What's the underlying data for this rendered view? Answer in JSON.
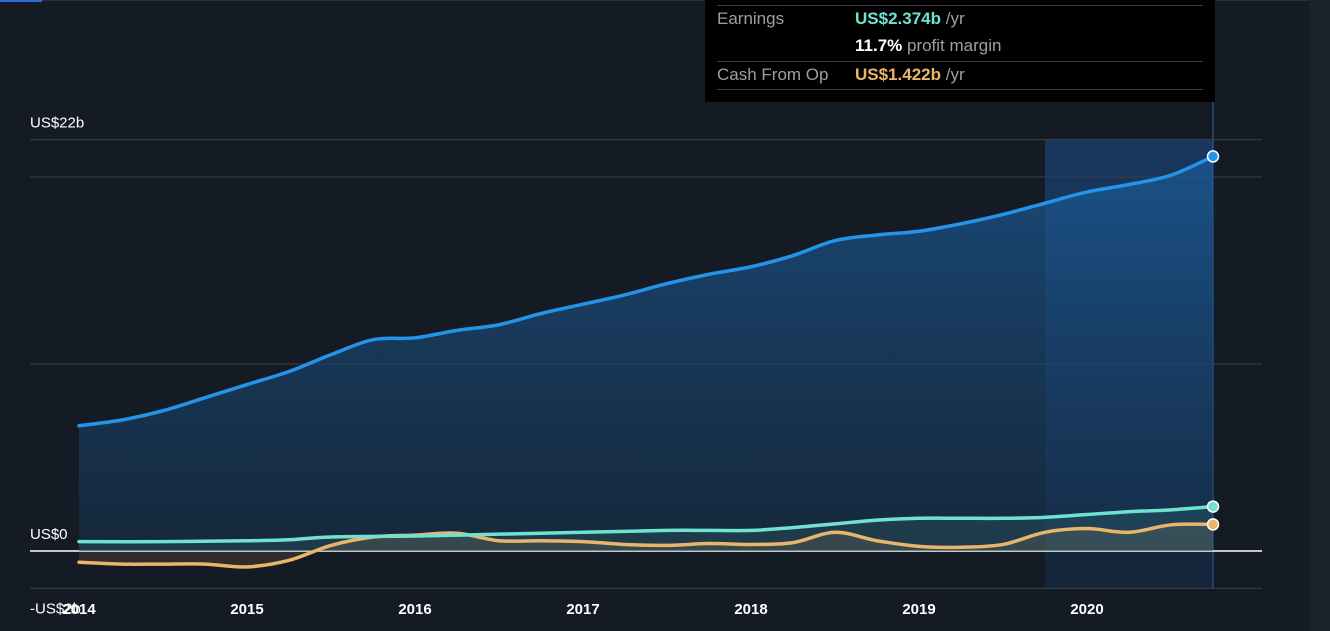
{
  "colors": {
    "revenue": "#2394e8",
    "earnings": "#6fe3cf",
    "cash_from_op": "#e8b56a",
    "background": "#151b24",
    "tooltip_bg": "#000000"
  },
  "tooltip": {
    "earnings": {
      "label": "Earnings",
      "value": "US$2.374b",
      "unit": " /yr"
    },
    "margin": {
      "value": "11.7%",
      "label": " profit margin"
    },
    "cash_from_op": {
      "label": "Cash From Op",
      "value": "US$1.422b",
      "unit": " /yr"
    }
  },
  "chart_data": {
    "type": "area",
    "title": "",
    "xlabel": "",
    "ylabel": "",
    "x_ticks": [
      "2014",
      "2015",
      "2016",
      "2017",
      "2018",
      "2019",
      "2020"
    ],
    "x_range": [
      2014,
      2020.8
    ],
    "y_range": [
      -2,
      22
    ],
    "y_tick_labels": [
      {
        "value": 22,
        "label": "US$22b"
      },
      {
        "value": 0,
        "label": "US$0"
      },
      {
        "value": -2,
        "label": "-US$2b"
      }
    ],
    "gridlines": [
      22,
      20,
      10,
      -2
    ],
    "zero_line": 0,
    "highlight_range": [
      2019.75,
      2020.75
    ],
    "series": [
      {
        "key": "revenue",
        "points": [
          [
            2014.0,
            6.7
          ],
          [
            2014.25,
            7.0
          ],
          [
            2014.5,
            7.5
          ],
          [
            2014.75,
            8.2
          ],
          [
            2015.0,
            8.9
          ],
          [
            2015.25,
            9.6
          ],
          [
            2015.5,
            10.5
          ],
          [
            2015.75,
            11.3
          ],
          [
            2016.0,
            11.4
          ],
          [
            2016.25,
            11.8
          ],
          [
            2016.5,
            12.1
          ],
          [
            2016.75,
            12.7
          ],
          [
            2017.0,
            13.2
          ],
          [
            2017.25,
            13.7
          ],
          [
            2017.5,
            14.3
          ],
          [
            2017.75,
            14.8
          ],
          [
            2018.0,
            15.2
          ],
          [
            2018.25,
            15.8
          ],
          [
            2018.5,
            16.6
          ],
          [
            2018.75,
            16.9
          ],
          [
            2019.0,
            17.1
          ],
          [
            2019.25,
            17.5
          ],
          [
            2019.5,
            18.0
          ],
          [
            2019.75,
            18.6
          ],
          [
            2020.0,
            19.2
          ],
          [
            2020.25,
            19.6
          ],
          [
            2020.5,
            20.1
          ],
          [
            2020.75,
            21.1
          ]
        ]
      },
      {
        "key": "earnings",
        "points": [
          [
            2014.0,
            0.5
          ],
          [
            2014.5,
            0.5
          ],
          [
            2015.0,
            0.55
          ],
          [
            2015.25,
            0.6
          ],
          [
            2015.5,
            0.75
          ],
          [
            2016.0,
            0.8
          ],
          [
            2016.5,
            0.9
          ],
          [
            2017.0,
            1.0
          ],
          [
            2017.5,
            1.1
          ],
          [
            2017.75,
            1.1
          ],
          [
            2018.0,
            1.1
          ],
          [
            2018.25,
            1.25
          ],
          [
            2018.5,
            1.45
          ],
          [
            2018.75,
            1.65
          ],
          [
            2019.0,
            1.75
          ],
          [
            2019.25,
            1.75
          ],
          [
            2019.5,
            1.75
          ],
          [
            2019.75,
            1.8
          ],
          [
            2020.0,
            1.95
          ],
          [
            2020.25,
            2.1
          ],
          [
            2020.5,
            2.2
          ],
          [
            2020.75,
            2.374
          ]
        ]
      },
      {
        "key": "cash_from_op",
        "points": [
          [
            2014.0,
            -0.6
          ],
          [
            2014.25,
            -0.7
          ],
          [
            2014.5,
            -0.7
          ],
          [
            2014.75,
            -0.7
          ],
          [
            2015.0,
            -0.85
          ],
          [
            2015.25,
            -0.5
          ],
          [
            2015.5,
            0.3
          ],
          [
            2015.75,
            0.75
          ],
          [
            2016.0,
            0.85
          ],
          [
            2016.25,
            0.95
          ],
          [
            2016.5,
            0.55
          ],
          [
            2016.75,
            0.55
          ],
          [
            2017.0,
            0.5
          ],
          [
            2017.25,
            0.35
          ],
          [
            2017.5,
            0.3
          ],
          [
            2017.75,
            0.4
          ],
          [
            2018.0,
            0.35
          ],
          [
            2018.25,
            0.45
          ],
          [
            2018.5,
            1.0
          ],
          [
            2018.75,
            0.55
          ],
          [
            2019.0,
            0.25
          ],
          [
            2019.25,
            0.2
          ],
          [
            2019.5,
            0.35
          ],
          [
            2019.75,
            1.0
          ],
          [
            2020.0,
            1.2
          ],
          [
            2020.25,
            1.0
          ],
          [
            2020.5,
            1.4
          ],
          [
            2020.75,
            1.422
          ]
        ]
      }
    ]
  }
}
